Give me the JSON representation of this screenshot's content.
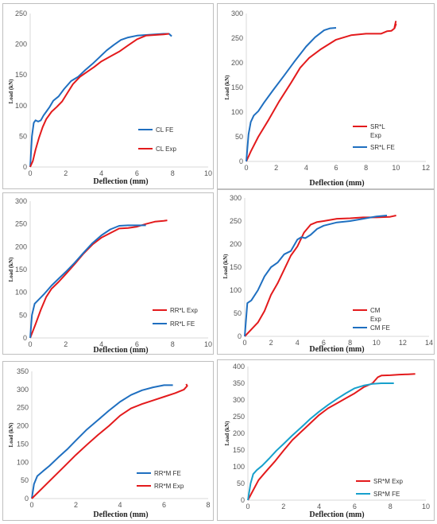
{
  "chart_data": [
    {
      "type": "line",
      "xlabel": "Deflection (mm)",
      "ylabel": "Load (kN)",
      "xlim": [
        0,
        10
      ],
      "ylim": [
        0,
        250
      ],
      "xticks": [
        0,
        2,
        4,
        6,
        8,
        10
      ],
      "yticks": [
        0,
        50,
        100,
        150,
        200,
        250
      ],
      "legend_position": "right",
      "series": [
        {
          "name": "CL FE",
          "color": "#1f6fc0",
          "x": [
            0,
            0.1,
            0.2,
            0.3,
            0.45,
            0.6,
            0.75,
            0.9,
            1.1,
            1.3,
            1.6,
            1.9,
            2.3,
            2.7,
            3.1,
            3.5,
            3.9,
            4.3,
            4.7,
            5.1,
            5.5,
            6.0,
            6.5,
            7.0,
            7.5,
            7.8,
            7.95
          ],
          "y": [
            0,
            50,
            72,
            76,
            74,
            76,
            84,
            90,
            98,
            108,
            115,
            127,
            140,
            147,
            158,
            168,
            179,
            190,
            199,
            207,
            211,
            214,
            215,
            216,
            217,
            217,
            213
          ]
        },
        {
          "name": "CL Exp",
          "color": "#e31a1c",
          "x": [
            0,
            0.15,
            0.3,
            0.5,
            0.7,
            0.9,
            1.2,
            1.5,
            1.8,
            2.1,
            2.4,
            2.8,
            3.2,
            3.6,
            4.0,
            4.5,
            5.0,
            5.5,
            6.0,
            6.5,
            7.0,
            7.5,
            7.8
          ],
          "y": [
            0,
            10,
            28,
            48,
            65,
            78,
            90,
            98,
            107,
            121,
            135,
            147,
            155,
            163,
            172,
            180,
            188,
            198,
            208,
            214,
            215,
            216,
            217
          ]
        }
      ]
    },
    {
      "type": "line",
      "xlabel": "Deflection (mm)",
      "ylabel": "Load (kN)",
      "xlim": [
        0,
        12
      ],
      "ylim": [
        0,
        300
      ],
      "xticks": [
        0,
        2,
        4,
        6,
        8,
        10,
        12
      ],
      "yticks": [
        0,
        50,
        100,
        150,
        200,
        250,
        300
      ],
      "legend_position": "right",
      "series": [
        {
          "name": "SR*L Exp",
          "color": "#e31a1c",
          "x": [
            0,
            0.3,
            0.8,
            1.5,
            2.2,
            3.0,
            3.6,
            4.2,
            5.0,
            6.0,
            7.0,
            8.0,
            9.0,
            9.4,
            9.7,
            9.9,
            10.0,
            9.9,
            10.0
          ],
          "y": [
            0,
            20,
            50,
            85,
            122,
            160,
            190,
            210,
            228,
            247,
            256,
            259,
            259,
            264,
            265,
            270,
            278,
            272,
            285
          ]
        },
        {
          "name": "SR*L FE",
          "color": "#1f6fc0",
          "x": [
            0,
            0.15,
            0.3,
            0.5,
            0.8,
            1.2,
            1.8,
            2.5,
            3.2,
            4.0,
            4.6,
            5.2,
            5.6,
            6.0
          ],
          "y": [
            0,
            55,
            80,
            93,
            102,
            120,
            145,
            173,
            202,
            233,
            252,
            266,
            270,
            271
          ]
        }
      ]
    },
    {
      "type": "line",
      "xlabel": "Deflection (mm)",
      "ylabel": "Load (kN)",
      "xlim": [
        0,
        10
      ],
      "ylim": [
        0,
        300
      ],
      "xticks": [
        0,
        2,
        4,
        6,
        8,
        10
      ],
      "yticks": [
        0,
        50,
        100,
        150,
        200,
        250,
        300
      ],
      "legend_position": "right",
      "series": [
        {
          "name": "RR*L Exp",
          "color": "#e31a1c",
          "x": [
            0,
            0.3,
            0.6,
            0.9,
            1.2,
            1.6,
            2.0,
            2.5,
            3.0,
            3.5,
            4.0,
            4.5,
            5.0,
            5.5,
            6.0,
            6.5,
            7.0,
            7.5,
            7.7
          ],
          "y": [
            0,
            30,
            62,
            90,
            108,
            123,
            140,
            162,
            185,
            205,
            220,
            230,
            240,
            241,
            244,
            250,
            255,
            257,
            258
          ]
        },
        {
          "name": "RR*L FE",
          "color": "#1f6fc0",
          "x": [
            0,
            0.1,
            0.25,
            0.5,
            0.8,
            1.2,
            1.6,
            2.0,
            2.5,
            3.0,
            3.5,
            4.0,
            4.5,
            5.0,
            5.5,
            6.0,
            6.5
          ],
          "y": [
            0,
            50,
            75,
            85,
            97,
            115,
            130,
            145,
            165,
            187,
            208,
            225,
            238,
            246,
            247,
            247,
            247
          ]
        }
      ]
    },
    {
      "type": "line",
      "xlabel": "Deflection (mm)",
      "ylabel": "Load (kN)",
      "xlim": [
        0,
        14
      ],
      "ylim": [
        0,
        300
      ],
      "xticks": [
        0,
        2,
        4,
        6,
        8,
        10,
        12,
        14
      ],
      "yticks": [
        0,
        50,
        100,
        150,
        200,
        250,
        300
      ],
      "legend_position": "right",
      "series": [
        {
          "name": "CM Exp",
          "color": "#e31a1c",
          "x": [
            0,
            0.5,
            1.0,
            1.5,
            2.0,
            2.5,
            3.0,
            3.5,
            4.0,
            4.5,
            5.0,
            5.5,
            6.0,
            7.0,
            8.0,
            9.0,
            10.0,
            11.0,
            11.5
          ],
          "y": [
            0,
            15,
            30,
            55,
            90,
            115,
            145,
            175,
            195,
            225,
            242,
            248,
            250,
            255,
            256,
            258,
            258,
            259,
            262
          ]
        },
        {
          "name": "CM FE",
          "color": "#1f6fc0",
          "x": [
            0,
            0.2,
            0.5,
            1.0,
            1.5,
            2.0,
            2.5,
            3.0,
            3.5,
            4.0,
            4.3,
            4.6,
            5.0,
            5.5,
            6.0,
            7.0,
            8.0,
            9.0,
            10.0,
            10.8
          ],
          "y": [
            0,
            72,
            78,
            100,
            130,
            150,
            160,
            178,
            185,
            210,
            215,
            213,
            220,
            233,
            240,
            247,
            250,
            255,
            260,
            262
          ]
        }
      ]
    },
    {
      "type": "line",
      "xlabel": "Deflection (mm)",
      "ylabel": "Load (kN)",
      "xlim": [
        0,
        8
      ],
      "ylim": [
        0,
        350
      ],
      "xticks": [
        0,
        2,
        4,
        6,
        8
      ],
      "yticks": [
        0,
        50,
        100,
        150,
        200,
        250,
        300,
        350
      ],
      "legend_position": "right",
      "series": [
        {
          "name": "RR*M FE",
          "color": "#1f6fc0",
          "x": [
            0,
            0.1,
            0.25,
            0.5,
            0.8,
            1.2,
            1.6,
            2.0,
            2.5,
            3.0,
            3.5,
            4.0,
            4.5,
            5.0,
            5.5,
            6.0,
            6.4
          ],
          "y": [
            0,
            40,
            62,
            75,
            90,
            113,
            135,
            160,
            190,
            216,
            242,
            266,
            285,
            298,
            306,
            312,
            312
          ]
        },
        {
          "name": "RR*M Exp",
          "color": "#e31a1c",
          "x": [
            0,
            0.5,
            1.0,
            1.5,
            2.0,
            2.5,
            3.0,
            3.5,
            4.0,
            4.5,
            5.0,
            5.5,
            6.0,
            6.5,
            6.9,
            7.05,
            7.0
          ],
          "y": [
            0,
            30,
            60,
            90,
            120,
            148,
            175,
            200,
            228,
            248,
            260,
            270,
            280,
            290,
            300,
            310,
            315
          ]
        }
      ]
    },
    {
      "type": "line",
      "xlabel": "Deflection (mm)",
      "ylabel": "Load (kN)",
      "xlim": [
        0,
        10
      ],
      "ylim": [
        0,
        400
      ],
      "xticks": [
        0,
        2,
        4,
        6,
        8,
        10
      ],
      "yticks": [
        0,
        50,
        100,
        150,
        200,
        250,
        300,
        350,
        400
      ],
      "legend_position": "bottom-right",
      "series": [
        {
          "name": "SR*M Exp",
          "color": "#e31a1c",
          "x": [
            0,
            0.3,
            0.6,
            1.0,
            1.5,
            2.0,
            2.5,
            3.0,
            3.5,
            4.0,
            4.5,
            5.0,
            5.5,
            6.0,
            6.5,
            7.0,
            7.3,
            7.5,
            8.0,
            8.5,
            9.0,
            9.4
          ],
          "y": [
            0,
            30,
            60,
            85,
            115,
            148,
            180,
            205,
            230,
            255,
            275,
            290,
            305,
            320,
            338,
            350,
            368,
            373,
            374,
            376,
            377,
            378
          ]
        },
        {
          "name": "SR*M FE",
          "color": "#17a0cc",
          "x": [
            0,
            0.15,
            0.3,
            0.5,
            0.8,
            1.2,
            1.6,
            2.0,
            2.5,
            3.0,
            3.5,
            4.0,
            4.5,
            5.0,
            5.5,
            6.0,
            6.5,
            7.0,
            7.5,
            8.0,
            8.2
          ],
          "y": [
            0,
            50,
            78,
            90,
            103,
            125,
            148,
            168,
            194,
            218,
            243,
            265,
            285,
            303,
            320,
            335,
            343,
            348,
            350,
            350,
            350
          ]
        }
      ]
    }
  ]
}
